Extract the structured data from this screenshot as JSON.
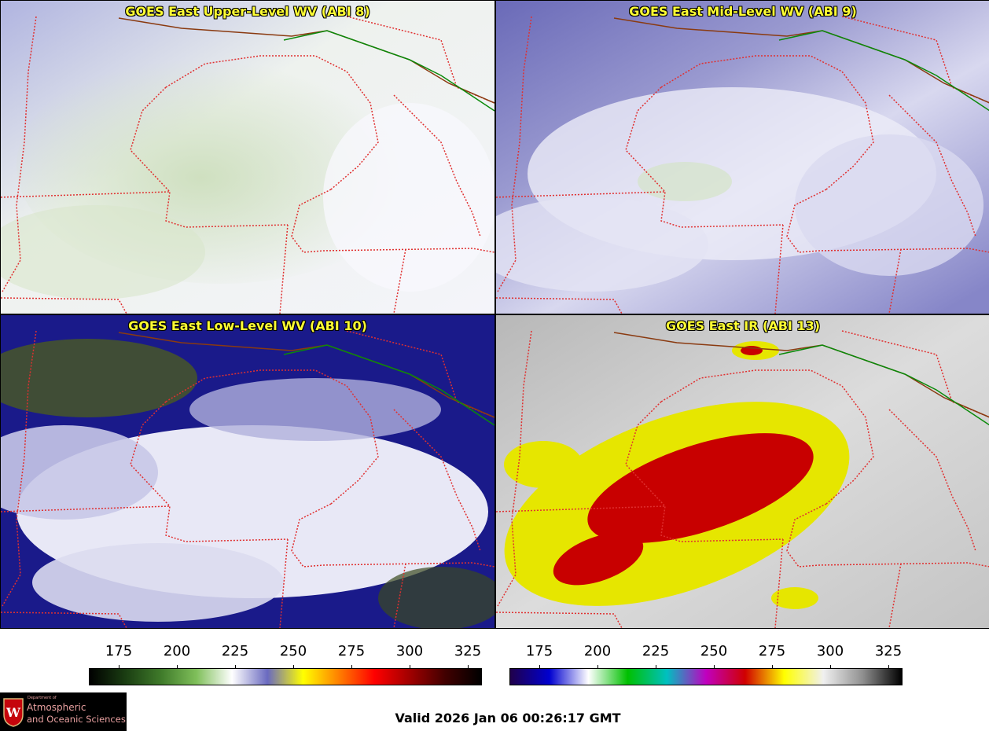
{
  "panels": [
    {
      "id": "upper",
      "title": "GOES East Upper-Level WV (ABI 8)"
    },
    {
      "id": "mid",
      "title": "GOES East Mid-Level WV (ABI 9)"
    },
    {
      "id": "low",
      "title": "GOES East Low-Level WV (ABI 10)"
    },
    {
      "id": "ir",
      "title": "GOES East IR (ABI 13)"
    }
  ],
  "colorbars": {
    "wv": {
      "ticks": [
        "175",
        "200",
        "225",
        "250",
        "275",
        "300",
        "325"
      ],
      "colors": [
        "#000000",
        "#1a3d12",
        "#3f7a2a",
        "#7fbf5a",
        "#ffffff",
        "#6a6ac0",
        "#ffff00",
        "#ff8000",
        "#ff0000",
        "#a00000",
        "#400000",
        "#000000"
      ]
    },
    "ir": {
      "ticks": [
        "175",
        "200",
        "225",
        "250",
        "275",
        "300",
        "325"
      ],
      "colors": [
        "#20004a",
        "#0000d0",
        "#ffffff",
        "#00c000",
        "#00c0c0",
        "#c000c0",
        "#d00000",
        "#ffff00",
        "#f0f0f0",
        "#909090",
        "#000000"
      ]
    }
  },
  "footer": {
    "logo_dept": "Department of",
    "logo_line1": "Atmospheric",
    "logo_line2": "and Oceanic Sciences",
    "valid": "Valid 2026 Jan 06 00:26:17 GMT"
  }
}
